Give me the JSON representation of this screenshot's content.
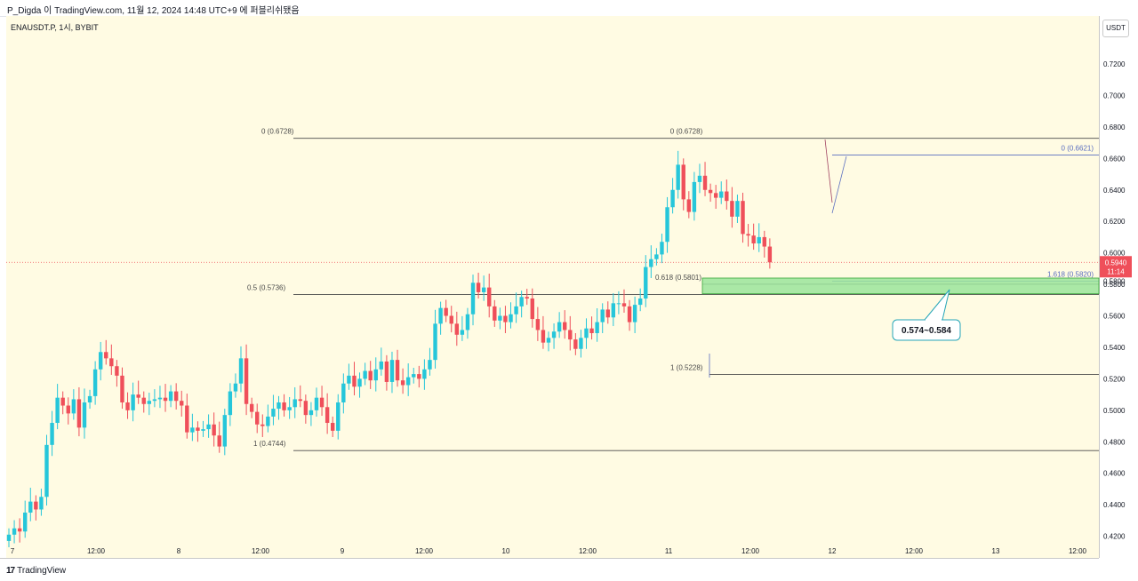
{
  "header": {
    "attribution": "P_Digda 이 TradingView.com, 11월 12, 2024 14:48 UTC+9 에 퍼블리쉬됐음"
  },
  "symbol": "ENAUSDT.P, 1시, BYBIT",
  "currency": "USDT",
  "footer": {
    "brand": "TradingView",
    "logo_icon": "tradingview-logo-icon"
  },
  "colors": {
    "background": "#fffbe3",
    "up": "#26c6da",
    "down": "#ef4f5a",
    "zone_fill": "#9be49b",
    "zone_border": "#3aa63a",
    "callout_border": "#26a6b8",
    "last_price_bg": "#ef4f5a"
  },
  "chart_data": {
    "type": "candlestick",
    "y_axis": {
      "min": 0.42,
      "max": 0.72,
      "ticks": [
        "0.7200",
        "0.7000",
        "0.6800",
        "0.6600",
        "0.6400",
        "0.6200",
        "0.6000",
        "0.5800",
        "0.5600",
        "0.5400",
        "0.5200",
        "0.5000",
        "0.4800",
        "0.4600",
        "0.4400",
        "0.4200"
      ]
    },
    "x_axis": {
      "ticks": [
        "7",
        "12:00",
        "8",
        "12:00",
        "9",
        "12:00",
        "10",
        "12:00",
        "11",
        "12:00",
        "12",
        "12:00",
        "13",
        "12:00"
      ]
    },
    "last_price": {
      "value": "0.5940",
      "countdown": "11:14"
    },
    "closes": [
      0.421,
      0.425,
      0.423,
      0.435,
      0.442,
      0.437,
      0.445,
      0.478,
      0.492,
      0.508,
      0.503,
      0.498,
      0.507,
      0.489,
      0.505,
      0.509,
      0.526,
      0.537,
      0.533,
      0.528,
      0.522,
      0.505,
      0.5,
      0.51,
      0.508,
      0.504,
      0.506,
      0.507,
      0.508,
      0.506,
      0.512,
      0.506,
      0.503,
      0.486,
      0.489,
      0.487,
      0.488,
      0.491,
      0.484,
      0.477,
      0.497,
      0.512,
      0.517,
      0.533,
      0.504,
      0.499,
      0.491,
      0.49,
      0.496,
      0.501,
      0.505,
      0.5,
      0.502,
      0.507,
      0.506,
      0.497,
      0.5,
      0.508,
      0.502,
      0.492,
      0.487,
      0.505,
      0.517,
      0.522,
      0.515,
      0.52,
      0.525,
      0.519,
      0.526,
      0.531,
      0.518,
      0.532,
      0.519,
      0.516,
      0.521,
      0.523,
      0.52,
      0.526,
      0.532,
      0.555,
      0.565,
      0.56,
      0.555,
      0.548,
      0.551,
      0.561,
      0.581,
      0.575,
      0.578,
      0.566,
      0.557,
      0.56,
      0.556,
      0.561,
      0.566,
      0.572,
      0.571,
      0.558,
      0.551,
      0.543,
      0.546,
      0.55,
      0.556,
      0.551,
      0.545,
      0.539,
      0.546,
      0.552,
      0.549,
      0.556,
      0.564,
      0.559,
      0.568,
      0.568,
      0.566,
      0.556,
      0.567,
      0.571,
      0.591,
      0.596,
      0.599,
      0.607,
      0.629,
      0.64,
      0.656,
      0.634,
      0.626,
      0.645,
      0.649,
      0.64,
      0.638,
      0.635,
      0.639,
      0.633,
      0.623,
      0.633,
      0.612,
      0.611,
      0.606,
      0.61,
      0.604,
      0.594
    ],
    "fib_levels": [
      {
        "label": "0 (0.6728)",
        "value": 0.6728
      },
      {
        "label": "0 (0.6728)",
        "value": 0.6728
      },
      {
        "label": "0.5 (0.5736)",
        "value": 0.5736
      },
      {
        "label": "1 (0.4744)",
        "value": 0.4744
      },
      {
        "label": "0.618 (0.5801)",
        "value": 0.5801
      },
      {
        "label": "1 (0.5228)",
        "value": 0.5228
      },
      {
        "label": "0 (0.6621)",
        "value": 0.6621
      },
      {
        "label": "1.618 (0.5820)",
        "value": 0.582
      }
    ],
    "zone": {
      "low": 0.574,
      "high": 0.584
    },
    "callout": "0.574~0.584"
  }
}
